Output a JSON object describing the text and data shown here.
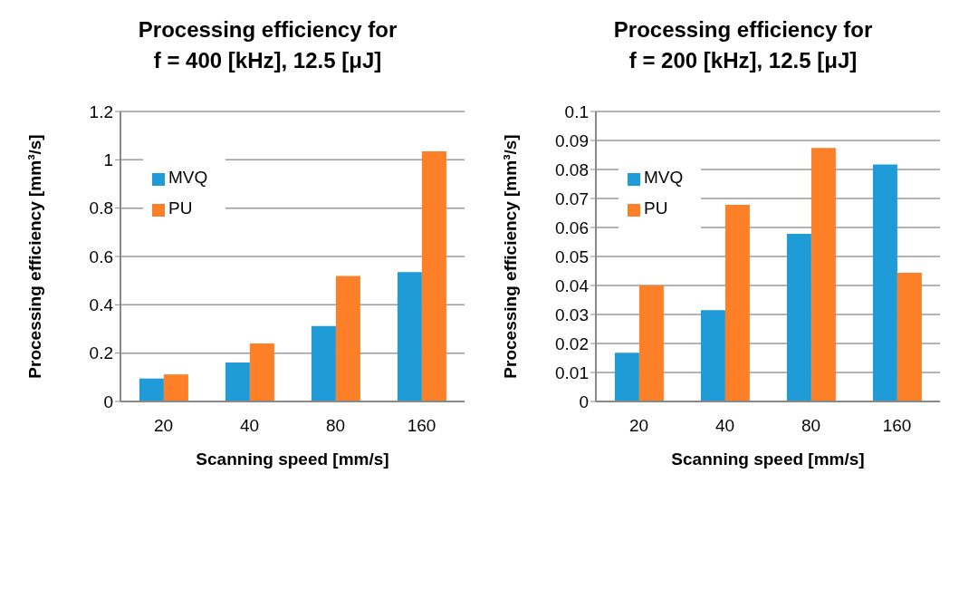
{
  "chart_data": [
    {
      "type": "bar",
      "title": "Processing efficiency for\nf = 400 [kHz], 12.5 [μJ]",
      "xlabel": "Scanning speed [mm/s]",
      "ylabel": "Processing efficiency [mm³/s]",
      "categories": [
        "20",
        "40",
        "80",
        "160"
      ],
      "series": [
        {
          "name": "MVQ",
          "color": "#1f9bd7",
          "values": [
            0.095,
            0.161,
            0.312,
            0.535
          ]
        },
        {
          "name": "PU",
          "color": "#fd7f27",
          "values": [
            0.112,
            0.24,
            0.519,
            1.035
          ]
        }
      ],
      "ylim": [
        0,
        1.2
      ],
      "yticks": [
        0,
        0.2,
        0.4,
        0.6,
        0.8,
        1,
        1.2
      ],
      "grid": "y",
      "legend": "top left"
    },
    {
      "type": "bar",
      "title": "Processing efficiency for\nf = 200 [kHz], 12.5 [μJ]",
      "xlabel": "Scanning speed [mm/s]",
      "ylabel": "Processing efficiency [mm³/s]",
      "categories": [
        "20",
        "40",
        "80",
        "160"
      ],
      "series": [
        {
          "name": "MVQ",
          "color": "#1f9bd7",
          "values": [
            0.0168,
            0.0315,
            0.0578,
            0.0817
          ]
        },
        {
          "name": "PU",
          "color": "#fd7f27",
          "values": [
            0.04,
            0.0678,
            0.0874,
            0.0444
          ]
        }
      ],
      "ylim": [
        0,
        0.1
      ],
      "yticks": [
        0,
        0.01,
        0.02,
        0.03,
        0.04,
        0.05,
        0.06,
        0.07,
        0.08,
        0.09,
        0.1
      ],
      "grid": "y",
      "legend": "top left"
    }
  ]
}
